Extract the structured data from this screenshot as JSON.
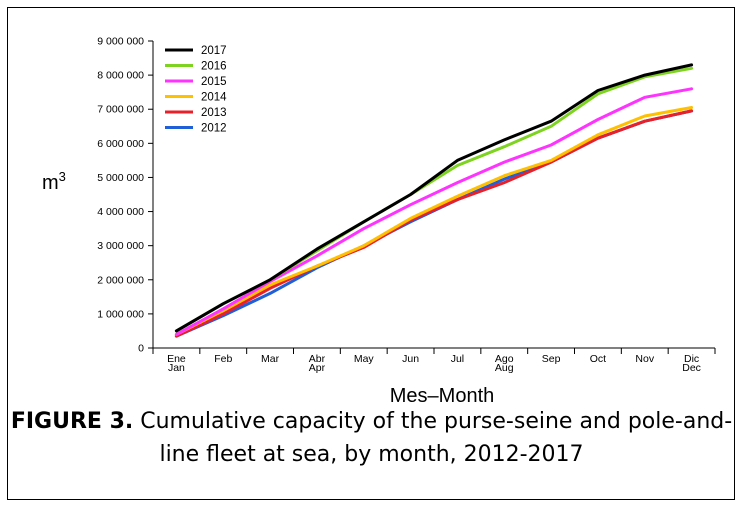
{
  "chart_data": {
    "type": "line",
    "xlabel": "Mes–Month",
    "ylabel": "m",
    "ylabel_superscript": "3",
    "ylim": [
      0,
      9000000
    ],
    "yticks": [
      0,
      1000000,
      2000000,
      3000000,
      4000000,
      5000000,
      6000000,
      7000000,
      8000000,
      9000000
    ],
    "ytick_labels": [
      "0",
      "1 000 000",
      "2 000 000",
      "3 000 000",
      "4 000 000",
      "5 000 000",
      "6 000 000",
      "7 000 000",
      "8 000 000",
      "9 000 000"
    ],
    "categories": [
      [
        "Ene",
        "Jan"
      ],
      [
        "Feb"
      ],
      [
        "Mar"
      ],
      [
        "Abr",
        "Apr"
      ],
      [
        "May"
      ],
      [
        "Jun"
      ],
      [
        "Jul"
      ],
      [
        "Ago",
        "Aug"
      ],
      [
        "Sep"
      ],
      [
        "Oct"
      ],
      [
        "Nov"
      ],
      [
        "Dic",
        "Dec"
      ]
    ],
    "legend_position": "top-left",
    "grid": false,
    "series": [
      {
        "name": "2017",
        "color": "#000000",
        "values": [
          500000,
          1300000,
          2000000,
          2900000,
          3700000,
          4500000,
          5500000,
          6100000,
          6650000,
          7550000,
          8000000,
          8300000
        ]
      },
      {
        "name": "2016",
        "color": "#7ed321",
        "values": [
          500000,
          1300000,
          2000000,
          2850000,
          3700000,
          4500000,
          5350000,
          5900000,
          6500000,
          7450000,
          7950000,
          8200000
        ]
      },
      {
        "name": "2015",
        "color": "#ff33ff",
        "values": [
          400000,
          1150000,
          1950000,
          2700000,
          3500000,
          4200000,
          4850000,
          5450000,
          5950000,
          6700000,
          7350000,
          7600000
        ]
      },
      {
        "name": "2014",
        "color": "#ffc000",
        "values": [
          400000,
          1100000,
          1850000,
          2400000,
          3000000,
          3800000,
          4450000,
          5050000,
          5500000,
          6250000,
          6800000,
          7050000
        ]
      },
      {
        "name": "2013",
        "color": "#e8202a",
        "values": [
          350000,
          1000000,
          1750000,
          2400000,
          2950000,
          3750000,
          4350000,
          4850000,
          5450000,
          6150000,
          6650000,
          6950000
        ]
      },
      {
        "name": "2012",
        "color": "#1f5fd8",
        "values": [
          350000,
          950000,
          1600000,
          2350000,
          3000000,
          3700000,
          4350000,
          4950000,
          5450000,
          6150000,
          6650000,
          6950000
        ]
      }
    ]
  },
  "caption": {
    "label": "FIGURE 3.",
    "text": "Cumulative capacity of the purse-seine and pole-and-line fleet at sea, by month, 2012-2017"
  }
}
